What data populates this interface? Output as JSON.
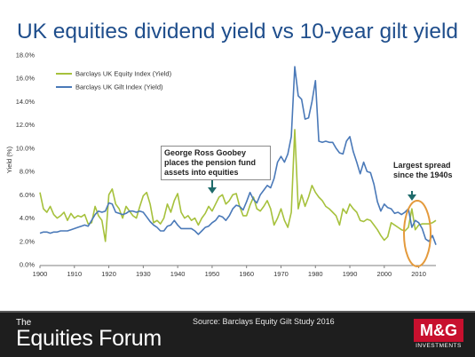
{
  "title": "UK equities dividend yield vs 10-year gilt yield",
  "footer": {
    "brand_the": "The",
    "brand_name": "Equities Forum",
    "source": "Source: Barclays Equity Gilt Study 2016",
    "logo_text": "M&G",
    "logo_sub": "INVESTMENTS"
  },
  "annotations": {
    "callout1": "George Ross Goobey places the pension fund assets into equities",
    "callout2": "Largest spread since the 1940s"
  },
  "colors": {
    "equity": "#a6c13c",
    "gilt": "#4a79b8",
    "title": "#1f4e8c",
    "highlight": "#e49a3c",
    "arrow": "#1f6b6b"
  },
  "chart_data": {
    "type": "line",
    "title": "UK equities dividend yield vs 10-year gilt yield",
    "ylabel": "Yield (%)",
    "xlabel": "",
    "xlim": [
      1900,
      2015
    ],
    "ylim": [
      0,
      18
    ],
    "xticks": [
      "1900",
      "1910",
      "1920",
      "1930",
      "1940",
      "1950",
      "1960",
      "1970",
      "1980",
      "1990",
      "2000",
      "2010"
    ],
    "yticks": [
      "0.0%",
      "2.0%",
      "4.0%",
      "6.0%",
      "8.0%",
      "10.0%",
      "12.0%",
      "14.0%",
      "16.0%",
      "18.0%"
    ],
    "legend_position": "top-left",
    "grid": false,
    "series": [
      {
        "name": "Barclays UK Equity Index (Yield)",
        "x": [
          1900,
          1901,
          1902,
          1903,
          1904,
          1905,
          1906,
          1907,
          1908,
          1909,
          1910,
          1911,
          1912,
          1913,
          1914,
          1915,
          1916,
          1917,
          1918,
          1919,
          1920,
          1921,
          1922,
          1923,
          1924,
          1925,
          1926,
          1927,
          1928,
          1929,
          1930,
          1931,
          1932,
          1933,
          1934,
          1935,
          1936,
          1937,
          1938,
          1939,
          1940,
          1941,
          1942,
          1943,
          1944,
          1945,
          1946,
          1947,
          1948,
          1949,
          1950,
          1951,
          1952,
          1953,
          1954,
          1955,
          1956,
          1957,
          1958,
          1959,
          1960,
          1961,
          1962,
          1963,
          1964,
          1965,
          1966,
          1967,
          1968,
          1969,
          1970,
          1971,
          1972,
          1973,
          1974,
          1975,
          1976,
          1977,
          1978,
          1979,
          1980,
          1981,
          1982,
          1983,
          1984,
          1985,
          1986,
          1987,
          1988,
          1989,
          1990,
          1991,
          1992,
          1993,
          1994,
          1995,
          1996,
          1997,
          1998,
          1999,
          2000,
          2001,
          2002,
          2003,
          2004,
          2005,
          2006,
          2007,
          2008,
          2009,
          2010,
          2011,
          2012,
          2013,
          2014,
          2015
        ],
        "values": [
          6.2,
          4.8,
          4.5,
          5.0,
          4.3,
          4.0,
          4.2,
          4.5,
          3.8,
          4.4,
          4.0,
          4.2,
          4.1,
          4.3,
          3.5,
          3.6,
          5.0,
          4.2,
          3.8,
          2.0,
          6.0,
          6.5,
          5.2,
          4.8,
          4.0,
          5.0,
          4.6,
          4.2,
          4.0,
          5.0,
          5.9,
          6.2,
          5.2,
          3.6,
          3.8,
          3.5,
          4.0,
          5.2,
          4.5,
          5.5,
          6.1,
          4.5,
          4.0,
          4.2,
          3.8,
          4.0,
          3.4,
          4.0,
          4.4,
          5.0,
          4.6,
          5.2,
          5.8,
          6.0,
          5.2,
          5.5,
          6.0,
          6.1,
          5.0,
          4.2,
          4.2,
          5.1,
          5.8,
          4.8,
          4.6,
          5.0,
          5.5,
          4.8,
          3.4,
          4.0,
          4.8,
          3.8,
          3.2,
          4.5,
          11.6,
          4.8,
          6.0,
          5.0,
          5.8,
          6.8,
          6.2,
          5.8,
          5.5,
          5.0,
          4.8,
          4.5,
          4.2,
          3.4,
          4.8,
          4.4,
          5.2,
          4.8,
          4.5,
          3.8,
          3.7,
          3.9,
          3.8,
          3.4,
          3.0,
          2.5,
          2.1,
          2.4,
          3.6,
          3.4,
          3.2,
          3.0,
          2.9,
          3.2,
          4.8,
          3.0,
          3.4,
          3.5,
          3.5,
          3.5,
          3.6,
          3.8
        ]
      },
      {
        "name": "Barclays UK Gilt Index (Yield)",
        "x": [
          1900,
          1901,
          1902,
          1903,
          1904,
          1905,
          1906,
          1907,
          1908,
          1909,
          1910,
          1911,
          1912,
          1913,
          1914,
          1915,
          1916,
          1917,
          1918,
          1919,
          1920,
          1921,
          1922,
          1923,
          1924,
          1925,
          1926,
          1927,
          1928,
          1929,
          1930,
          1931,
          1932,
          1933,
          1934,
          1935,
          1936,
          1937,
          1938,
          1939,
          1940,
          1941,
          1942,
          1943,
          1944,
          1945,
          1946,
          1947,
          1948,
          1949,
          1950,
          1951,
          1952,
          1953,
          1954,
          1955,
          1956,
          1957,
          1958,
          1959,
          1960,
          1961,
          1962,
          1963,
          1964,
          1965,
          1966,
          1967,
          1968,
          1969,
          1970,
          1971,
          1972,
          1973,
          1974,
          1975,
          1976,
          1977,
          1978,
          1979,
          1980,
          1981,
          1982,
          1983,
          1984,
          1985,
          1986,
          1987,
          1988,
          1989,
          1990,
          1991,
          1992,
          1993,
          1994,
          1995,
          1996,
          1997,
          1998,
          1999,
          2000,
          2001,
          2002,
          2003,
          2004,
          2005,
          2006,
          2007,
          2008,
          2009,
          2010,
          2011,
          2012,
          2013,
          2014,
          2015
        ],
        "values": [
          2.7,
          2.8,
          2.8,
          2.7,
          2.8,
          2.8,
          2.9,
          2.9,
          2.9,
          3.0,
          3.1,
          3.2,
          3.3,
          3.4,
          3.3,
          3.8,
          4.3,
          4.6,
          4.5,
          4.6,
          5.3,
          5.2,
          4.5,
          4.4,
          4.3,
          4.4,
          4.6,
          4.6,
          4.5,
          4.6,
          4.5,
          4.1,
          3.7,
          3.4,
          3.2,
          2.9,
          2.9,
          3.3,
          3.4,
          3.8,
          3.4,
          3.1,
          3.1,
          3.1,
          3.1,
          2.9,
          2.6,
          2.9,
          3.2,
          3.3,
          3.6,
          3.8,
          4.2,
          4.1,
          3.8,
          4.2,
          4.8,
          5.1,
          5.0,
          4.7,
          5.4,
          6.2,
          5.6,
          5.3,
          6.0,
          6.4,
          6.8,
          6.6,
          7.4,
          8.8,
          9.3,
          8.8,
          9.5,
          11.0,
          17.0,
          14.5,
          14.2,
          12.5,
          12.6,
          14.0,
          15.8,
          10.6,
          10.5,
          10.6,
          10.5,
          10.5,
          10.0,
          9.6,
          9.5,
          10.6,
          11.0,
          9.7,
          8.8,
          7.8,
          8.8,
          8.0,
          7.9,
          6.9,
          5.4,
          4.6,
          5.2,
          4.9,
          4.8,
          4.4,
          4.5,
          4.3,
          4.5,
          4.8,
          3.2,
          3.8,
          3.6,
          3.1,
          2.2,
          2.0,
          2.5,
          1.7
        ]
      }
    ]
  }
}
